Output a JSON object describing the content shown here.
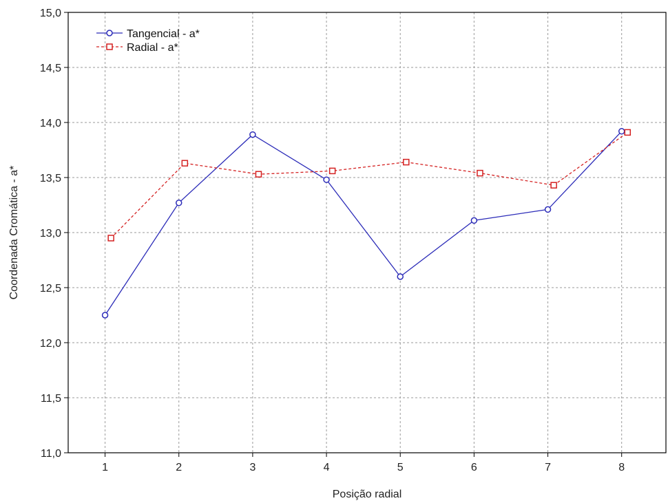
{
  "chart_data": {
    "type": "line",
    "x": [
      1,
      2,
      3,
      4,
      5,
      6,
      7,
      8
    ],
    "x_tick_labels": [
      "1",
      "2",
      "3",
      "4",
      "5",
      "6",
      "7",
      "8"
    ],
    "xlabel": "Posição radial",
    "ylabel": "Coordenada  Cromática - a*",
    "ylim": [
      11.0,
      15.0
    ],
    "y_ticks": [
      11.0,
      11.5,
      12.0,
      12.5,
      13.0,
      13.5,
      14.0,
      14.5,
      15.0
    ],
    "y_tick_labels": [
      "11,0",
      "11,5",
      "12,0",
      "12,5",
      "13,0",
      "13,5",
      "14,0",
      "14,5",
      "15,0"
    ],
    "grid": true,
    "legend_position": "top-left",
    "series": [
      {
        "name": "Tangencial - a*",
        "values": [
          12.25,
          13.27,
          13.89,
          13.48,
          12.6,
          13.11,
          13.21,
          13.92
        ],
        "color": "#2b2bb8",
        "line_style": "solid",
        "marker": "circle",
        "x_offset": 0
      },
      {
        "name": "Radial - a*",
        "values": [
          12.95,
          13.63,
          13.53,
          13.56,
          13.64,
          13.54,
          13.43,
          13.91
        ],
        "color": "#d42020",
        "line_style": "dashed",
        "marker": "square",
        "x_offset": 0.08
      }
    ]
  }
}
